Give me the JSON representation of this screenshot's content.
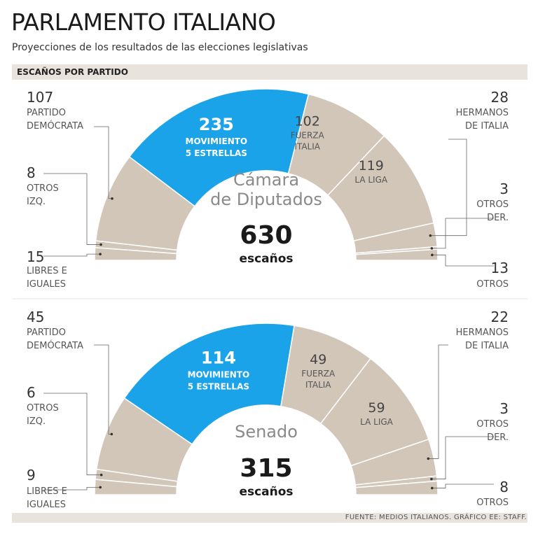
{
  "header": {
    "title": "PARLAMENTO ITALIANO",
    "subtitle": "Proyecciones de los resultados de las elecciones legislativas",
    "section": "ESCAÑOS POR PARTIDO"
  },
  "footer": {
    "source": "FUENTE: MEDIOS ITALIANOS.  GRÁFICO EE: STAFF."
  },
  "colors": {
    "highlight": "#1aa3e8",
    "others": "#d2c6b9",
    "separator": "#ffffff",
    "leader": "#666666"
  },
  "chart_data": [
    {
      "type": "pie",
      "subtype": "semicircle-parliament",
      "title": "Cámara de Diputados",
      "title_lines": [
        "Cámara",
        "de Diputados"
      ],
      "total": 630,
      "total_label": "630",
      "unit_label": "escaños",
      "series": [
        {
          "name": "Libres e Iguales",
          "label_lines": [
            "LIBRES E",
            "IGUALES"
          ],
          "value": 15,
          "value_label": "15"
        },
        {
          "name": "Otros Izq.",
          "label_lines": [
            "OTROS",
            "IZQ."
          ],
          "value": 8,
          "value_label": "8"
        },
        {
          "name": "Partido Demócrata",
          "label_lines": [
            "PARTIDO",
            "DEMÓCRATA"
          ],
          "value": 107,
          "value_label": "107"
        },
        {
          "name": "Movimiento 5 Estrellas",
          "label_lines": [
            "MOVIMIENTO",
            "5 ESTRELLAS"
          ],
          "value": 235,
          "value_label": "235",
          "highlight": true
        },
        {
          "name": "Fuerza Italia",
          "label_lines": [
            "FUERZA",
            "ITALIA"
          ],
          "value": 102,
          "value_label": "102"
        },
        {
          "name": "La Liga",
          "label_lines": [
            "LA LIGA"
          ],
          "value": 119,
          "value_label": "119"
        },
        {
          "name": "Hermanos de Italia",
          "label_lines": [
            "HERMANOS",
            "DE ITALIA"
          ],
          "value": 28,
          "value_label": "28"
        },
        {
          "name": "Otros Der.",
          "label_lines": [
            "OTROS",
            "DER."
          ],
          "value": 3,
          "value_label": "3"
        },
        {
          "name": "Otros",
          "label_lines": [
            "OTROS"
          ],
          "value": 13,
          "value_label": "13"
        }
      ]
    },
    {
      "type": "pie",
      "subtype": "semicircle-parliament",
      "title": "Senado",
      "title_lines": [
        "Senado"
      ],
      "total": 315,
      "total_label": "315",
      "unit_label": "escaños",
      "series": [
        {
          "name": "Libres e Iguales",
          "label_lines": [
            "LIBRES E",
            "IGUALES"
          ],
          "value": 9,
          "value_label": "9"
        },
        {
          "name": "Otros Izq.",
          "label_lines": [
            "OTROS",
            "IZQ."
          ],
          "value": 6,
          "value_label": "6"
        },
        {
          "name": "Partido Demócrata",
          "label_lines": [
            "PARTIDO",
            "DEMÓCRATA"
          ],
          "value": 45,
          "value_label": "45"
        },
        {
          "name": "Movimiento 5 Estrellas",
          "label_lines": [
            "MOVIMIENTO",
            "5 ESTRELLAS"
          ],
          "value": 114,
          "value_label": "114",
          "highlight": true
        },
        {
          "name": "Fuerza Italia",
          "label_lines": [
            "FUERZA",
            "ITALIA"
          ],
          "value": 49,
          "value_label": "49"
        },
        {
          "name": "La Liga",
          "label_lines": [
            "LA LIGA"
          ],
          "value": 59,
          "value_label": "59"
        },
        {
          "name": "Hermanos de Italia",
          "label_lines": [
            "HERMANOS",
            "DE ITALIA"
          ],
          "value": 22,
          "value_label": "22"
        },
        {
          "name": "Otros Der.",
          "label_lines": [
            "OTROS",
            "DER."
          ],
          "value": 3,
          "value_label": "3"
        },
        {
          "name": "Otros",
          "label_lines": [
            "OTROS"
          ],
          "value": 8,
          "value_label": "8"
        }
      ]
    }
  ]
}
